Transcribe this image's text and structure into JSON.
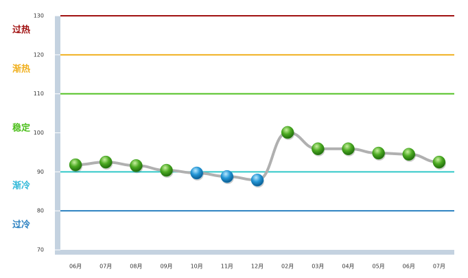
{
  "chart_data": {
    "type": "line",
    "categories": [
      "06月",
      "07月",
      "08月",
      "09月",
      "10月",
      "11月",
      "12月",
      "02月",
      "03月",
      "04月",
      "05月",
      "06月",
      "07月"
    ],
    "values": [
      91.8,
      92.5,
      91.6,
      90.4,
      89.7,
      88.8,
      87.9,
      100.1,
      95.9,
      95.9,
      94.8,
      94.5,
      92.5
    ],
    "color": "#b0b0b0",
    "marker_colors": [
      "#3a9e1e",
      "#3a9e1e",
      "#3a9e1e",
      "#3a9e1e",
      "#1a8ccc",
      "#1a8ccc",
      "#1a8ccc",
      "#3a9e1e",
      "#3a9e1e",
      "#3a9e1e",
      "#3a9e1e",
      "#3a9e1e",
      "#3a9e1e"
    ],
    "ylim": [
      70,
      130
    ],
    "yticks": [
      70,
      80,
      90,
      100,
      110,
      120,
      130
    ],
    "reference_lines": [
      {
        "value": 130,
        "color": "#a01010"
      },
      {
        "value": 120,
        "color": "#f0b020"
      },
      {
        "value": 110,
        "color": "#50c020"
      },
      {
        "value": 90,
        "color": "#30c8c8"
      },
      {
        "value": 80,
        "color": "#2a80c0"
      }
    ],
    "zone_labels": [
      {
        "text": "过热",
        "color": "#a01010"
      },
      {
        "text": "渐热",
        "color": "#f0b020"
      },
      {
        "text": "稳定",
        "color": "#50c020"
      },
      {
        "text": "渐冷",
        "color": "#30b8d8"
      },
      {
        "text": "过冷",
        "color": "#2a80c0"
      }
    ]
  }
}
